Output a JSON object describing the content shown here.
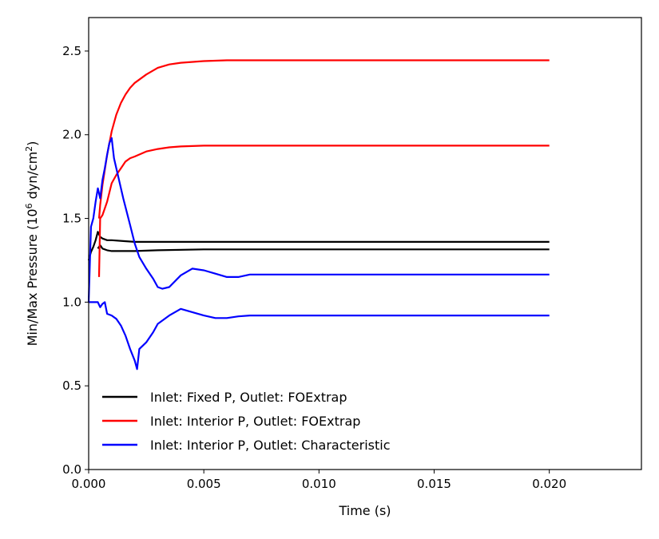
{
  "chart_data": {
    "type": "line",
    "xlabel": "Time (s)",
    "ylabel_prefix": "Min/Max Pressure (10",
    "ylabel_exp1": "6",
    "ylabel_mid": " dyn/cm",
    "ylabel_exp2": "2",
    "ylabel_suffix": ")",
    "xlim": [
      0,
      0.024
    ],
    "ylim": [
      0,
      2.7
    ],
    "xticks": [
      0.0,
      0.005,
      0.01,
      0.015,
      0.02
    ],
    "xtick_labels": [
      "0.000",
      "0.005",
      "0.010",
      "0.015",
      "0.020"
    ],
    "yticks": [
      0.0,
      0.5,
      1.0,
      1.5,
      2.0,
      2.5
    ],
    "ytick_labels": [
      "0.0",
      "0.5",
      "1.0",
      "1.5",
      "2.0",
      "2.5"
    ],
    "grid": false,
    "legend_placement": "lower-left",
    "legend": [
      {
        "label": "Inlet: Fixed P, Outlet: FOExtrap",
        "color": "#000000"
      },
      {
        "label": "Inlet: Interior P, Outlet: FOExtrap",
        "color": "#ff0000"
      },
      {
        "label": "Inlet: Interior P, Outlet: Characteristic",
        "color": "#0000ff"
      }
    ],
    "series": [
      {
        "color": "#000000",
        "x": [
          0,
          0.0001,
          0.0002,
          0.0003,
          0.0004,
          0.0005,
          0.0006,
          0.0008,
          0.001,
          0.0015,
          0.002,
          0.003,
          0.005,
          0.01,
          0.015,
          0.02
        ],
        "y": [
          1.25,
          1.3,
          1.33,
          1.37,
          1.42,
          1.39,
          1.38,
          1.37,
          1.37,
          1.365,
          1.36,
          1.36,
          1.36,
          1.36,
          1.36,
          1.36
        ]
      },
      {
        "color": "#000000",
        "x": [
          0.0004,
          0.0005,
          0.0006,
          0.0008,
          0.001,
          0.0015,
          0.002,
          0.003,
          0.005,
          0.01,
          0.015,
          0.02
        ],
        "y": [
          1.32,
          1.34,
          1.32,
          1.31,
          1.305,
          1.305,
          1.305,
          1.31,
          1.315,
          1.315,
          1.315,
          1.315
        ]
      },
      {
        "color": "#ff0000",
        "x": [
          0.00045,
          0.0005,
          0.0006,
          0.0008,
          0.001,
          0.0012,
          0.0014,
          0.0016,
          0.0018,
          0.002,
          0.0025,
          0.003,
          0.0035,
          0.004,
          0.005,
          0.006,
          0.008,
          0.01,
          0.015,
          0.02
        ],
        "y": [
          1.5,
          1.58,
          1.7,
          1.88,
          2.02,
          2.12,
          2.19,
          2.24,
          2.28,
          2.31,
          2.36,
          2.4,
          2.42,
          2.43,
          2.44,
          2.445,
          2.445,
          2.445,
          2.445,
          2.445
        ]
      },
      {
        "color": "#ff0000",
        "x": [
          0.00045,
          0.0005,
          0.0006,
          0.0008,
          0.001,
          0.0012,
          0.0014,
          0.0016,
          0.0018,
          0.002,
          0.0025,
          0.003,
          0.0035,
          0.004,
          0.005,
          0.006,
          0.008,
          0.01,
          0.015,
          0.02
        ],
        "y": [
          1.15,
          1.5,
          1.52,
          1.6,
          1.71,
          1.76,
          1.8,
          1.84,
          1.86,
          1.87,
          1.9,
          1.915,
          1.925,
          1.93,
          1.935,
          1.935,
          1.935,
          1.935,
          1.935,
          1.935
        ]
      },
      {
        "color": "#0000ff",
        "x": [
          0,
          0.0001,
          0.0002,
          0.0003,
          0.0004,
          0.0005,
          0.0006,
          0.0007,
          0.0008,
          0.0009,
          0.001,
          0.0011,
          0.0013,
          0.0015,
          0.0018,
          0.002,
          0.0022,
          0.0025,
          0.0028,
          0.003,
          0.0032,
          0.0035,
          0.004,
          0.0045,
          0.005,
          0.0055,
          0.006,
          0.0065,
          0.007,
          0.008,
          0.01,
          0.015,
          0.02
        ],
        "y": [
          1.0,
          1.45,
          1.5,
          1.6,
          1.68,
          1.62,
          1.73,
          1.8,
          1.88,
          1.95,
          1.98,
          1.86,
          1.74,
          1.62,
          1.46,
          1.35,
          1.27,
          1.2,
          1.14,
          1.09,
          1.08,
          1.09,
          1.16,
          1.2,
          1.19,
          1.17,
          1.15,
          1.15,
          1.165,
          1.165,
          1.165,
          1.165,
          1.165
        ]
      },
      {
        "color": "#0000ff",
        "x": [
          0,
          0.0002,
          0.0004,
          0.0005,
          0.0006,
          0.0007,
          0.0008,
          0.001,
          0.0012,
          0.0014,
          0.0016,
          0.0018,
          0.002,
          0.0021,
          0.0022,
          0.0025,
          0.0028,
          0.003,
          0.0035,
          0.004,
          0.0045,
          0.005,
          0.0055,
          0.006,
          0.0065,
          0.007,
          0.008,
          0.01,
          0.015,
          0.02
        ],
        "y": [
          1.0,
          1.0,
          1.0,
          0.97,
          0.99,
          1.0,
          0.93,
          0.92,
          0.9,
          0.86,
          0.8,
          0.72,
          0.65,
          0.6,
          0.72,
          0.76,
          0.82,
          0.87,
          0.92,
          0.96,
          0.94,
          0.92,
          0.905,
          0.905,
          0.915,
          0.92,
          0.92,
          0.92,
          0.92,
          0.92
        ]
      }
    ]
  }
}
